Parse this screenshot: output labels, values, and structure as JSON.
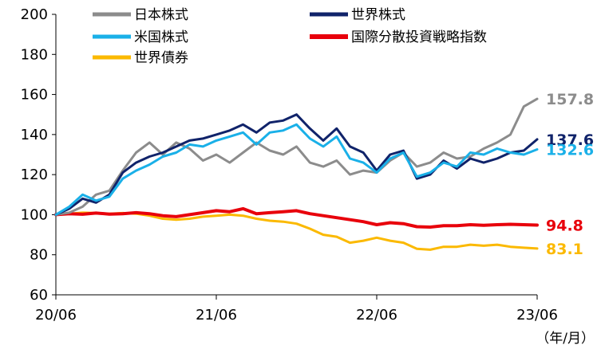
{
  "chart_data": {
    "type": "line",
    "title": "",
    "xlabel": "",
    "ylabel": "",
    "unit_label": "（年/月）",
    "ylim": [
      60,
      200
    ],
    "yticks": [
      60,
      80,
      100,
      120,
      140,
      160,
      180,
      200
    ],
    "xticks": [
      "20/06",
      "21/06",
      "22/06",
      "23/06"
    ],
    "x_range": [
      "20/06",
      "23/06"
    ],
    "legend_position": "top",
    "series": [
      {
        "name": "日本株式",
        "color": "#8c8c8c",
        "end_label": "157.8",
        "points": [
          [
            "20/06",
            100
          ],
          [
            "20/07",
            101
          ],
          [
            "20/08",
            104
          ],
          [
            "20/09",
            110
          ],
          [
            "20/10",
            112
          ],
          [
            "20/11",
            122
          ],
          [
            "20/12",
            131
          ],
          [
            "21/01",
            136
          ],
          [
            "21/02",
            130
          ],
          [
            "21/03",
            136
          ],
          [
            "21/04",
            133
          ],
          [
            "21/05",
            127
          ],
          [
            "21/06",
            130
          ],
          [
            "21/07",
            126
          ],
          [
            "21/08",
            131
          ],
          [
            "21/09",
            136
          ],
          [
            "21/10",
            132
          ],
          [
            "21/11",
            130
          ],
          [
            "21/12",
            134
          ],
          [
            "22/01",
            126
          ],
          [
            "22/02",
            124
          ],
          [
            "22/03",
            127
          ],
          [
            "22/04",
            120
          ],
          [
            "22/05",
            122
          ],
          [
            "22/06",
            121
          ],
          [
            "22/07",
            127
          ],
          [
            "22/08",
            131
          ],
          [
            "22/09",
            124
          ],
          [
            "22/10",
            126
          ],
          [
            "22/11",
            131
          ],
          [
            "22/12",
            128
          ],
          [
            "23/01",
            129
          ],
          [
            "23/02",
            133
          ],
          [
            "23/03",
            136
          ],
          [
            "23/04",
            140
          ],
          [
            "23/05",
            154
          ],
          [
            "23/06",
            157.8
          ]
        ]
      },
      {
        "name": "世界株式",
        "color": "#10236a",
        "end_label": "137.6",
        "points": [
          [
            "20/06",
            100
          ],
          [
            "20/07",
            103
          ],
          [
            "20/08",
            108
          ],
          [
            "20/09",
            106
          ],
          [
            "20/10",
            110
          ],
          [
            "20/11",
            121
          ],
          [
            "20/12",
            126
          ],
          [
            "21/01",
            129
          ],
          [
            "21/02",
            131
          ],
          [
            "21/03",
            134
          ],
          [
            "21/04",
            137
          ],
          [
            "21/05",
            138
          ],
          [
            "21/06",
            140
          ],
          [
            "21/07",
            142
          ],
          [
            "21/08",
            145
          ],
          [
            "21/09",
            141
          ],
          [
            "21/10",
            146
          ],
          [
            "21/11",
            147
          ],
          [
            "21/12",
            150
          ],
          [
            "22/01",
            143
          ],
          [
            "22/02",
            137
          ],
          [
            "22/03",
            143
          ],
          [
            "22/04",
            134
          ],
          [
            "22/05",
            131
          ],
          [
            "22/06",
            122
          ],
          [
            "22/07",
            130
          ],
          [
            "22/08",
            132
          ],
          [
            "22/09",
            118
          ],
          [
            "22/10",
            120
          ],
          [
            "22/11",
            127
          ],
          [
            "22/12",
            123
          ],
          [
            "23/01",
            128
          ],
          [
            "23/02",
            126
          ],
          [
            "23/03",
            128
          ],
          [
            "23/04",
            131
          ],
          [
            "23/05",
            132
          ],
          [
            "23/06",
            137.6
          ]
        ]
      },
      {
        "name": "米国株式",
        "color": "#1ab0e8",
        "end_label": "132.6",
        "points": [
          [
            "20/06",
            100
          ],
          [
            "20/07",
            104
          ],
          [
            "20/08",
            110
          ],
          [
            "20/09",
            107
          ],
          [
            "20/10",
            109
          ],
          [
            "20/11",
            118
          ],
          [
            "20/12",
            122
          ],
          [
            "21/01",
            125
          ],
          [
            "21/02",
            129
          ],
          [
            "21/03",
            131
          ],
          [
            "21/04",
            135
          ],
          [
            "21/05",
            134
          ],
          [
            "21/06",
            137
          ],
          [
            "21/07",
            139
          ],
          [
            "21/08",
            141
          ],
          [
            "21/09",
            135
          ],
          [
            "21/10",
            141
          ],
          [
            "21/11",
            142
          ],
          [
            "21/12",
            145
          ],
          [
            "22/01",
            138
          ],
          [
            "22/02",
            134
          ],
          [
            "22/03",
            139
          ],
          [
            "22/04",
            128
          ],
          [
            "22/05",
            126
          ],
          [
            "22/06",
            121
          ],
          [
            "22/07",
            128
          ],
          [
            "22/08",
            131
          ],
          [
            "22/09",
            119
          ],
          [
            "22/10",
            121
          ],
          [
            "22/11",
            126
          ],
          [
            "22/12",
            124
          ],
          [
            "23/01",
            131
          ],
          [
            "23/02",
            130
          ],
          [
            "23/03",
            133
          ],
          [
            "23/04",
            131
          ],
          [
            "23/05",
            130
          ],
          [
            "23/06",
            132.6
          ]
        ]
      },
      {
        "name": "国際分散投資戦略指数",
        "color": "#e8000b",
        "end_label": "94.8",
        "points": [
          [
            "20/06",
            100
          ],
          [
            "20/07",
            100.5
          ],
          [
            "20/08",
            100.2
          ],
          [
            "20/09",
            100.8
          ],
          [
            "20/10",
            100.3
          ],
          [
            "20/11",
            100.5
          ],
          [
            "20/12",
            101
          ],
          [
            "21/01",
            100.5
          ],
          [
            "21/02",
            99.5
          ],
          [
            "21/03",
            99
          ],
          [
            "21/04",
            100
          ],
          [
            "21/05",
            101
          ],
          [
            "21/06",
            102
          ],
          [
            "21/07",
            101.5
          ],
          [
            "21/08",
            103
          ],
          [
            "21/09",
            100.5
          ],
          [
            "21/10",
            101
          ],
          [
            "21/11",
            101.5
          ],
          [
            "21/12",
            102
          ],
          [
            "22/01",
            100.5
          ],
          [
            "22/02",
            99.5
          ],
          [
            "22/03",
            98.5
          ],
          [
            "22/04",
            97.5
          ],
          [
            "22/05",
            96.5
          ],
          [
            "22/06",
            95
          ],
          [
            "22/07",
            96
          ],
          [
            "22/08",
            95.5
          ],
          [
            "22/09",
            94
          ],
          [
            "22/10",
            93.8
          ],
          [
            "22/11",
            94.5
          ],
          [
            "22/12",
            94.5
          ],
          [
            "23/01",
            95
          ],
          [
            "23/02",
            94.7
          ],
          [
            "23/03",
            95
          ],
          [
            "23/04",
            95.2
          ],
          [
            "23/05",
            95
          ],
          [
            "23/06",
            94.8
          ]
        ]
      },
      {
        "name": "世界債券",
        "color": "#fbb900",
        "end_label": "83.1",
        "points": [
          [
            "20/06",
            100
          ],
          [
            "20/07",
            100.5
          ],
          [
            "20/08",
            101
          ],
          [
            "20/09",
            100.8
          ],
          [
            "20/10",
            100.5
          ],
          [
            "20/11",
            100.8
          ],
          [
            "20/12",
            100.5
          ],
          [
            "21/01",
            99.5
          ],
          [
            "21/02",
            98
          ],
          [
            "21/03",
            97.5
          ],
          [
            "21/04",
            98
          ],
          [
            "21/05",
            99
          ],
          [
            "21/06",
            99.5
          ],
          [
            "21/07",
            100
          ],
          [
            "21/08",
            99.5
          ],
          [
            "21/09",
            98
          ],
          [
            "21/10",
            97
          ],
          [
            "21/11",
            96.5
          ],
          [
            "21/12",
            95.5
          ],
          [
            "22/01",
            93
          ],
          [
            "22/02",
            90
          ],
          [
            "22/03",
            89
          ],
          [
            "22/04",
            86
          ],
          [
            "22/05",
            87
          ],
          [
            "22/06",
            88.5
          ],
          [
            "22/07",
            87
          ],
          [
            "22/08",
            86
          ],
          [
            "22/09",
            83
          ],
          [
            "22/10",
            82.5
          ],
          [
            "22/11",
            84
          ],
          [
            "22/12",
            84
          ],
          [
            "23/01",
            85
          ],
          [
            "23/02",
            84.5
          ],
          [
            "23/03",
            85
          ],
          [
            "23/04",
            84
          ],
          [
            "23/05",
            83.5
          ],
          [
            "23/06",
            83.1
          ]
        ]
      }
    ]
  }
}
